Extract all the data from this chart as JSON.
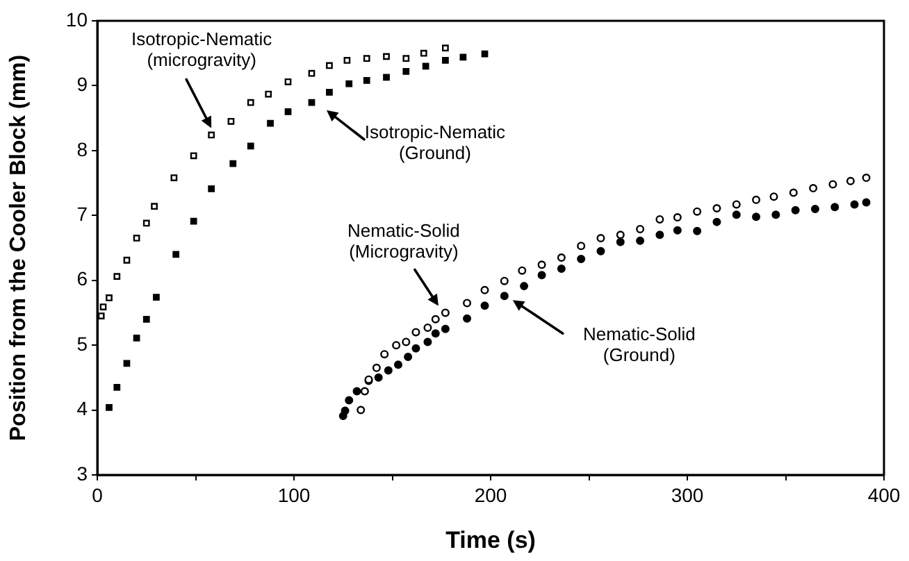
{
  "chart_data": {
    "type": "scatter",
    "xlabel": "Time (s)",
    "ylabel": "Position from the Cooler Block (mm)",
    "xlim": [
      0,
      400
    ],
    "xticks": [
      0,
      {
        "value": 50,
        "label": null
      },
      100,
      {
        "value": 150,
        "label": null
      },
      200,
      {
        "value": 250,
        "label": null
      },
      300,
      {
        "value": 350,
        "label": null
      },
      400
    ],
    "ylim": [
      3,
      10
    ],
    "yticks": [
      3,
      4,
      5,
      6,
      7,
      8,
      9,
      10
    ],
    "grid": false,
    "annotations": [
      "Isotropic-Nematic\n(microgravity)",
      {
        "text": "Isotropic-Nematic\n(Ground)",
        "x": 118,
        "y": 8.9
      },
      {
        "text": "Nematic-Solid\n(Microgravity)",
        "x": 177,
        "y": 5.5
      },
      "Nematic-Solid\n(Ground)"
    ],
    "series": [
      {
        "color": "#000000",
        "marker": "square",
        "x": [
          2,
          3,
          6,
          10,
          15,
          20,
          25,
          29,
          39,
          49,
          58,
          68,
          78,
          87,
          97,
          109,
          118,
          127,
          137,
          147,
          157,
          166,
          177
        ],
        "values": [
          5.45,
          5.59,
          5.73,
          6.06,
          6.31,
          6.65,
          6.88,
          7.14,
          7.58,
          7.92,
          8.24,
          8.45,
          8.74,
          8.87,
          9.06,
          9.19,
          9.31,
          9.39,
          9.42,
          9.45,
          9.42,
          9.5,
          9.58
        ]
      },
      {
        "color": "#000000",
        "marker": "square",
        "x": [
          6,
          10,
          15,
          20,
          25,
          30,
          40,
          49,
          58,
          69,
          78,
          88,
          97,
          109,
          118,
          128,
          137,
          147,
          157,
          167,
          177,
          186,
          197
        ],
        "values": [
          4.04,
          4.35,
          4.72,
          5.11,
          5.4,
          5.74,
          6.4,
          6.91,
          7.41,
          7.8,
          8.07,
          8.42,
          8.6,
          8.74,
          8.9,
          9.03,
          9.08,
          9.13,
          9.22,
          9.3,
          9.39,
          9.44,
          9.49
        ]
      },
      {
        "color": "#000000",
        "marker": "circle",
        "x": [
          134,
          136,
          138,
          142,
          146,
          152,
          157,
          162,
          168,
          172,
          177,
          188,
          197,
          207,
          216,
          226,
          236,
          246,
          256,
          266,
          276,
          286,
          295,
          305,
          315,
          325,
          335,
          344,
          354,
          364,
          374,
          383,
          391
        ],
        "values": [
          4.0,
          4.29,
          4.47,
          4.65,
          4.86,
          5.0,
          5.05,
          5.2,
          5.27,
          5.4,
          5.5,
          5.65,
          5.85,
          5.99,
          6.15,
          6.24,
          6.35,
          6.53,
          6.65,
          6.7,
          6.79,
          6.94,
          6.97,
          7.06,
          7.11,
          7.17,
          7.24,
          7.29,
          7.35,
          7.42,
          7.48,
          7.53,
          7.58
        ]
      },
      {
        "color": "#000000",
        "marker": "circle",
        "x": [
          125,
          126,
          128,
          132,
          138,
          143,
          148,
          153,
          158,
          162,
          168,
          172,
          177,
          188,
          197,
          207,
          217,
          226,
          236,
          246,
          256,
          266,
          276,
          286,
          295,
          305,
          315,
          325,
          335,
          345,
          355,
          365,
          375,
          385,
          391
        ],
        "values": [
          3.91,
          3.99,
          4.15,
          4.29,
          4.45,
          4.5,
          4.61,
          4.7,
          4.82,
          4.95,
          5.05,
          5.18,
          5.25,
          5.41,
          5.61,
          5.76,
          5.91,
          6.08,
          6.18,
          6.33,
          6.45,
          6.59,
          6.61,
          6.7,
          6.77,
          6.76,
          6.9,
          7.01,
          6.98,
          7.01,
          7.08,
          7.1,
          7.13,
          7.17,
          7.2
        ]
      }
    ]
  }
}
